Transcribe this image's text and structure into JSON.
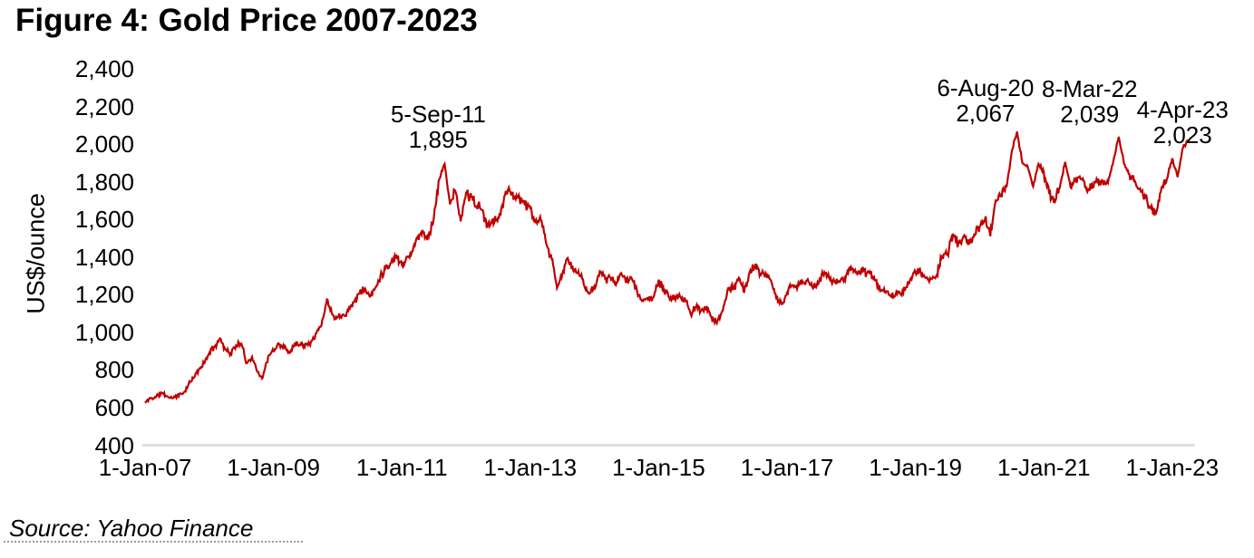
{
  "figure": {
    "title": "Figure 4: Gold Price 2007-2023",
    "source": "Source: Yahoo Finance"
  },
  "chart_data": {
    "type": "line",
    "title": "Figure 4: Gold Price 2007-2023",
    "xlabel": "",
    "ylabel": "US$/ounce",
    "ylim": [
      400,
      2400
    ],
    "ytick_step": 200,
    "ytick_labels": [
      "2,400",
      "2,200",
      "2,000",
      "1,800",
      "1,600",
      "1,400",
      "1,200",
      "1,000",
      "800",
      "600",
      "400"
    ],
    "xticks": [
      "1-Jan-07",
      "1-Jan-09",
      "1-Jan-11",
      "1-Jan-13",
      "1-Jan-15",
      "1-Jan-17",
      "1-Jan-19",
      "1-Jan-21",
      "1-Jan-23"
    ],
    "grid": false,
    "legend": "none",
    "line_color": "#C00000",
    "axis_color": "#D9D9D9",
    "series": [
      {
        "name": "Gold price",
        "units": "US$/ounce",
        "frequency": "monthly",
        "start": "Jan-2007",
        "end": "4-Apr-23",
        "values": [
          625,
          650,
          655,
          680,
          662,
          650,
          665,
          672,
          715,
          755,
          800,
          834,
          890,
          925,
          968,
          910,
          888,
          930,
          940,
          835,
          870,
          790,
          760,
          870,
          900,
          940,
          920,
          890,
          945,
          932,
          940,
          950,
          995,
          1040,
          1175,
          1095,
          1080,
          1095,
          1115,
          1160,
          1205,
          1230,
          1190,
          1235,
          1300,
          1345,
          1370,
          1405,
          1360,
          1400,
          1430,
          1510,
          1530,
          1505,
          1615,
          1815,
          1895,
          1680,
          1750,
          1590,
          1740,
          1720,
          1670,
          1650,
          1560,
          1600,
          1610,
          1690,
          1770,
          1720,
          1715,
          1675,
          1660,
          1580,
          1595,
          1470,
          1390,
          1235,
          1310,
          1395,
          1330,
          1325,
          1255,
          1205,
          1245,
          1325,
          1285,
          1290,
          1250,
          1315,
          1285,
          1285,
          1215,
          1170,
          1175,
          1185,
          1280,
          1215,
          1185,
          1185,
          1190,
          1170,
          1095,
          1135,
          1115,
          1140,
          1065,
          1060,
          1115,
          1235,
          1235,
          1290,
          1215,
          1320,
          1350,
          1310,
          1315,
          1275,
          1175,
          1150,
          1210,
          1250,
          1245,
          1265,
          1270,
          1240,
          1270,
          1320,
          1280,
          1270,
          1275,
          1300,
          1345,
          1320,
          1325,
          1315,
          1300,
          1250,
          1220,
          1200,
          1190,
          1215,
          1220,
          1280,
          1320,
          1315,
          1290,
          1285,
          1305,
          1410,
          1415,
          1525,
          1470,
          1510,
          1465,
          1520,
          1560,
          1600,
          1510,
          1700,
          1730,
          1770,
          1960,
          2067,
          1900,
          1880,
          1775,
          1895,
          1850,
          1735,
          1710,
          1770,
          1905,
          1770,
          1815,
          1815,
          1755,
          1785,
          1805,
          1805,
          1795,
          1910,
          2039,
          1895,
          1840,
          1805,
          1765,
          1710,
          1660,
          1635,
          1770,
          1815,
          1925,
          1825,
          1980,
          2023
        ]
      }
    ],
    "annotations": [
      {
        "label_date": "5-Sep-11",
        "label_value": "1,895",
        "t": 2011.68,
        "value": 1895
      },
      {
        "label_date": "6-Aug-20",
        "label_value": "2,067",
        "t": 2020.6,
        "value": 2067
      },
      {
        "label_date": "8-Mar-22",
        "label_value": "2,039",
        "t": 2022.18,
        "value": 2039
      },
      {
        "label_date": "4-Apr-23",
        "label_value": "2,023",
        "t": 2023.26,
        "value": 2023
      }
    ]
  }
}
